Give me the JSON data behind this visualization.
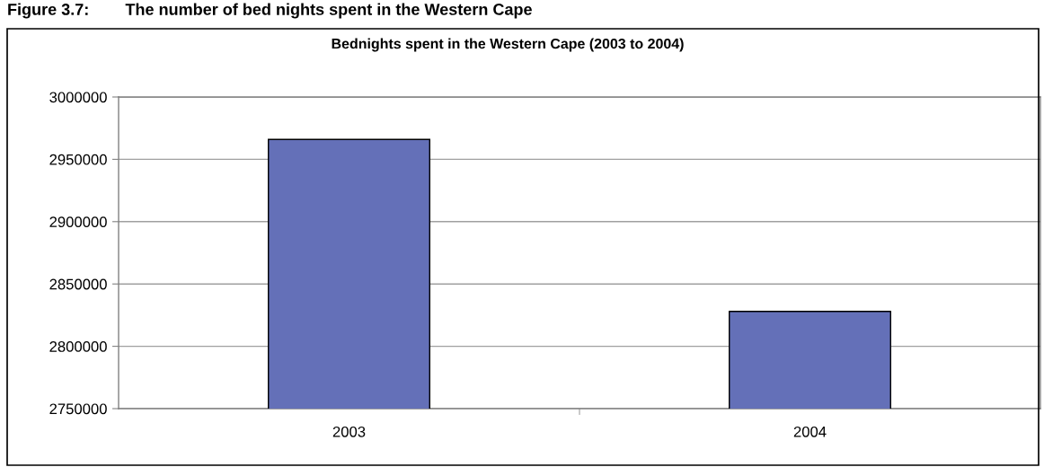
{
  "chart_data": {
    "type": "bar",
    "title": "Bednights spent in the Western Cape (2003 to 2004)",
    "annotations": [
      "Figure 3.7:        The number of bed nights spent in the Western Cape"
    ],
    "categories": [
      "2003",
      "2004"
    ],
    "values": [
      2966000,
      2828000
    ],
    "color": "#6470b8",
    "ylim": [
      2750000,
      3000000
    ],
    "yticks": [
      2750000,
      2800000,
      2850000,
      2900000,
      2950000,
      3000000
    ],
    "grid": "y"
  }
}
